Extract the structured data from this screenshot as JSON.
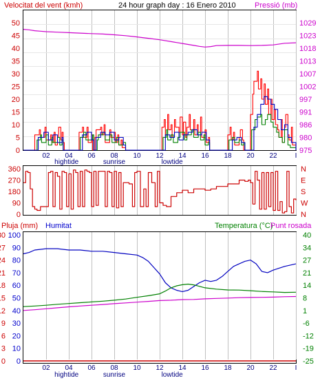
{
  "header": {
    "wind_label": "Velocitat del vent (kmh)",
    "title": "24 hour graph day : 16 Enero 2010",
    "pressure_label": "Pressió (mb)"
  },
  "bottom_header": {
    "rain_label": "Pluja (mm)",
    "humidity_label": "Humitat",
    "temp_label": "Temperatura (°C)",
    "dew_label": "Punt rosada"
  },
  "colors": {
    "wind_gust": "#ff0000",
    "wind_avg": "#008000",
    "wind_avg2": "#0000c0",
    "wind_max": "#cc0000",
    "pressure": "#cc00cc",
    "direction": "#cc0000",
    "humidity": "#0000c0",
    "temperature": "#008000",
    "dew": "#cc00cc",
    "rain": "#cc0000",
    "axis_blue": "#0000cc",
    "axis_red": "#cc0000",
    "axis_magenta": "#cc00cc",
    "axis_green": "#008000"
  },
  "x_ticks": [
    "02",
    "04",
    "06",
    "08",
    "10",
    "12",
    "14",
    "16",
    "18",
    "20",
    "22",
    "I"
  ],
  "x_annotations": [
    {
      "text": "hightide",
      "hour": 3.8
    },
    {
      "text": "sunrise",
      "hour": 8.0
    },
    {
      "text": "lowtide",
      "hour": 13.1
    }
  ],
  "chart_data": [
    {
      "type": "line",
      "title": "24 hour graph day : 16 Enero 2010",
      "ylabel": "Velocitat del vent (kmh)",
      "y2label": "Pressió (mb)",
      "ylim": [
        0,
        50
      ],
      "y_ticks": [
        "0",
        "5",
        "10",
        "15",
        "20",
        "25",
        "30",
        "35",
        "40",
        "45",
        "50"
      ],
      "y2_ticks": [
        "975",
        "980",
        "986",
        "991",
        "997",
        "1002",
        "1007",
        "1013",
        "1018",
        "1023",
        "1029"
      ],
      "y2lim": [
        975,
        1029
      ],
      "xlim": [
        0,
        24
      ],
      "series": [
        {
          "name": "gust",
          "color": "#ff0000",
          "x": [
            0,
            1.0,
            1.0,
            1.4,
            1.5,
            1.9,
            2.0,
            2.4,
            2.5,
            2.7,
            2.8,
            3.0,
            3.1,
            3.3,
            3.4,
            3.5,
            3.6,
            4.8,
            4.9,
            5.2,
            5.3,
            5.6,
            5.7,
            6.0,
            6.1,
            6.3,
            6.4,
            6.8,
            6.9,
            7.1,
            7.2,
            7.6,
            7.7,
            8.0,
            8.1,
            8.3,
            8.4,
            8.6,
            8.7,
            9.0,
            9.1,
            12.1,
            12.2,
            12.4,
            12.5,
            12.7,
            12.8,
            13.0,
            13.1,
            13.3,
            13.4,
            13.7,
            13.8,
            14.0,
            14.1,
            14.3,
            14.4,
            14.6,
            14.7,
            15.0,
            15.1,
            15.3,
            15.4,
            15.6,
            15.7,
            16.0,
            16.1,
            16.3,
            16.4,
            17.9,
            18.0,
            18.2,
            18.3,
            18.5,
            18.6,
            19.0,
            19.1,
            19.3,
            19.4,
            19.9,
            20.0,
            20.2,
            20.3,
            20.6,
            20.7,
            20.9,
            21.0,
            21.2,
            21.3,
            21.5,
            21.6,
            21.8,
            21.9,
            22.1,
            22.2,
            22.4,
            22.5,
            22.7,
            22.8,
            23.0,
            23.1,
            23.3,
            23.4,
            23.6,
            23.7,
            24
          ],
          "values": [
            0,
            0,
            6,
            8,
            5,
            9,
            4,
            6,
            3,
            7,
            2,
            5,
            9,
            4,
            7,
            3,
            0,
            0,
            7,
            9,
            5,
            9,
            3,
            6,
            0,
            5,
            8,
            9,
            6,
            10,
            3,
            8,
            5,
            7,
            3,
            6,
            2,
            4,
            1,
            0,
            0,
            0,
            9,
            12,
            6,
            14,
            8,
            10,
            5,
            12,
            9,
            7,
            13,
            6,
            11,
            5,
            9,
            14,
            8,
            12,
            6,
            10,
            7,
            13,
            5,
            8,
            3,
            5,
            0,
            0,
            6,
            9,
            4,
            7,
            2,
            5,
            8,
            4,
            0,
            0,
            14,
            22,
            27,
            31,
            24,
            28,
            20,
            26,
            18,
            24,
            14,
            20,
            12,
            16,
            10,
            8,
            5,
            12,
            3,
            9,
            14,
            6,
            4,
            9,
            2,
            2
          ]
        },
        {
          "name": "avg",
          "color": "#008000",
          "x": [
            0,
            1.1,
            1.2,
            1.5,
            1.6,
            2.0,
            2.2,
            2.5,
            2.6,
            3.0,
            3.2,
            3.4,
            3.5,
            4.9,
            5.0,
            5.3,
            5.5,
            6.1,
            6.2,
            6.5,
            6.6,
            7.0,
            7.2,
            7.6,
            7.8,
            8.2,
            8.4,
            8.8,
            9.0,
            12.2,
            12.3,
            12.6,
            12.7,
            13.0,
            13.2,
            13.6,
            13.8,
            14.2,
            14.4,
            14.8,
            15.0,
            15.4,
            15.6,
            15.9,
            16.0,
            16.3,
            16.4,
            18.0,
            18.1,
            18.4,
            18.6,
            19.0,
            19.2,
            19.4,
            19.5,
            20.0,
            20.1,
            20.4,
            20.6,
            20.9,
            21.0,
            21.3,
            21.5,
            21.8,
            22.0,
            22.3,
            22.5,
            22.8,
            23.0,
            23.3,
            23.5,
            24
          ],
          "values": [
            0,
            0,
            4,
            6,
            3,
            6,
            2,
            5,
            3,
            5,
            2,
            4,
            0,
            0,
            5,
            7,
            4,
            6,
            0,
            4,
            6,
            7,
            4,
            6,
            3,
            5,
            2,
            3,
            0,
            0,
            5,
            8,
            4,
            6,
            3,
            5,
            7,
            4,
            6,
            8,
            5,
            7,
            4,
            6,
            2,
            3,
            0,
            0,
            4,
            5,
            3,
            4,
            2,
            3,
            0,
            0,
            8,
            12,
            13,
            14,
            10,
            12,
            14,
            11,
            9,
            7,
            5,
            3,
            8,
            2,
            1,
            0
          ]
        },
        {
          "name": "avg2",
          "color": "#0000c0",
          "x": [
            0,
            1.1,
            1.3,
            1.8,
            2.2,
            2.6,
            3.0,
            3.4,
            3.5,
            4.9,
            5.2,
            5.6,
            6.0,
            6.2,
            6.4,
            6.8,
            7.2,
            7.6,
            8.0,
            8.4,
            8.8,
            9.0,
            12.2,
            12.5,
            12.9,
            13.3,
            13.7,
            14.1,
            14.5,
            14.9,
            15.3,
            15.7,
            16.1,
            16.4,
            18.0,
            18.4,
            18.8,
            19.2,
            19.5,
            20.0,
            20.3,
            20.6,
            20.9,
            21.2,
            21.5,
            21.8,
            22.1,
            22.4,
            22.7,
            23.0,
            23.3,
            23.6,
            24
          ],
          "values": [
            0,
            0,
            5,
            7,
            4,
            6,
            3,
            5,
            0,
            0,
            6,
            7,
            4,
            0,
            5,
            7,
            6,
            7,
            4,
            5,
            2,
            0,
            0,
            6,
            5,
            7,
            4,
            6,
            7,
            8,
            6,
            7,
            4,
            0,
            0,
            4,
            5,
            3,
            0,
            0,
            9,
            14,
            18,
            21,
            20,
            18,
            16,
            12,
            8,
            10,
            5,
            3,
            0
          ]
        },
        {
          "name": "pressure",
          "color": "#cc00cc",
          "axis": "y2",
          "x": [
            0,
            0.5,
            1,
            1.5,
            2,
            3,
            4,
            5,
            6,
            7,
            8,
            9,
            10,
            11,
            12,
            13,
            14,
            15,
            15.5,
            16,
            16.5,
            17,
            18,
            19,
            20,
            21,
            22,
            23,
            24
          ],
          "values": [
            1026.2,
            1026.0,
            1025.6,
            1025.4,
            1025.2,
            1025.0,
            1024.8,
            1024.6,
            1024.4,
            1024.2,
            1023.9,
            1023.5,
            1023.0,
            1022.4,
            1021.8,
            1021.0,
            1020.2,
            1019.4,
            1019.0,
            1018.7,
            1018.9,
            1019.3,
            1019.4,
            1019.4,
            1019.3,
            1019.4,
            1019.6,
            1020.3,
            1020.5
          ]
        }
      ]
    },
    {
      "type": "line",
      "ylabel": "",
      "ylim": [
        0,
        360
      ],
      "y_ticks": [
        "0",
        "90",
        "180",
        "270",
        "360"
      ],
      "y2_ticks": [
        "N",
        "W",
        "S",
        "E",
        "N"
      ],
      "xlim": [
        0,
        24
      ],
      "series": [
        {
          "name": "direction",
          "color": "#cc0000",
          "x": [
            0,
            0.2,
            0.4,
            0.6,
            0.8,
            1.0,
            1.2,
            1.5,
            2.0,
            2.2,
            2.4,
            2.6,
            2.8,
            3.0,
            3.2,
            3.4,
            3.6,
            3.8,
            4.0,
            4.2,
            4.4,
            4.6,
            4.8,
            5.0,
            5.2,
            5.4,
            5.6,
            5.8,
            6.0,
            6.2,
            6.4,
            6.6,
            6.8,
            7.0,
            7.2,
            7.4,
            7.6,
            7.8,
            8.0,
            8.2,
            8.4,
            8.6,
            8.8,
            9.0,
            9.3,
            9.6,
            9.8,
            10.0,
            10.3,
            10.6,
            10.8,
            11.0,
            11.3,
            11.6,
            11.8,
            12.0,
            12.3,
            12.6,
            13.0,
            13.5,
            14.0,
            14.5,
            15.0,
            15.5,
            16.0,
            16.5,
            17.0,
            17.5,
            18.0,
            18.5,
            19.0,
            19.5,
            19.8,
            20.0,
            20.2,
            20.4,
            20.6,
            20.8,
            21.0,
            21.2,
            21.4,
            21.6,
            21.8,
            22.0,
            22.2,
            22.4,
            22.6,
            22.8,
            23.0,
            23.2,
            23.4,
            23.6,
            23.8,
            24
          ],
          "values": [
            250,
            340,
            330,
            200,
            60,
            40,
            30,
            60,
            60,
            330,
            340,
            60,
            330,
            300,
            40,
            340,
            330,
            60,
            320,
            40,
            350,
            330,
            60,
            340,
            60,
            350,
            340,
            330,
            60,
            340,
            70,
            340,
            340,
            340,
            60,
            340,
            330,
            60,
            340,
            50,
            330,
            60,
            250,
            250,
            240,
            60,
            330,
            340,
            60,
            200,
            60,
            330,
            250,
            60,
            340,
            90,
            70,
            60,
            140,
            170,
            190,
            170,
            200,
            200,
            190,
            200,
            220,
            220,
            240,
            240,
            270,
            260,
            270,
            250,
            80,
            340,
            270,
            40,
            330,
            40,
            330,
            60,
            330,
            30,
            340,
            30,
            100,
            10,
            20,
            340,
            60,
            10,
            120,
            110
          ]
        }
      ]
    },
    {
      "type": "line",
      "ylabel": "Pluja (mm)",
      "y_ticks_rain": [
        "0",
        "3",
        "6",
        "9",
        "12",
        "15",
        "18",
        "21",
        "24",
        "27",
        "30"
      ],
      "y_ticks_humidity": [
        "0",
        "10",
        "20",
        "30",
        "40",
        "50",
        "60",
        "70",
        "80",
        "90",
        "100"
      ],
      "y2_ticks": [
        "-25",
        "-19",
        "-12",
        "-6",
        "1",
        "8",
        "14",
        "21",
        "27",
        "34",
        "40"
      ],
      "ylim": [
        0,
        100
      ],
      "y2lim": [
        -25,
        40
      ],
      "xlim": [
        0,
        24
      ],
      "series": [
        {
          "name": "Humitat",
          "color": "#0000c0",
          "x": [
            0,
            0.5,
            1,
            2,
            3,
            4,
            5,
            6,
            7,
            8,
            9,
            10,
            10.5,
            11,
            11.5,
            12,
            12.5,
            13,
            13.5,
            14,
            14.5,
            15,
            15.5,
            16,
            16.5,
            17,
            17.5,
            18,
            18.5,
            19,
            19.5,
            20,
            20.5,
            21,
            21.5,
            22,
            23,
            24
          ],
          "values": [
            85,
            86,
            88,
            89,
            89,
            88,
            88,
            87,
            87,
            86,
            85,
            84,
            82,
            79,
            74,
            69,
            62,
            58,
            56,
            55,
            56,
            59,
            62,
            64,
            63,
            64,
            67,
            71,
            75,
            77,
            79,
            80,
            77,
            71,
            70,
            72,
            75,
            77
          ]
        },
        {
          "name": "Temperatura",
          "color": "#008000",
          "axis": "y2",
          "x": [
            0,
            1,
            2,
            3,
            4,
            5,
            6,
            7,
            8,
            9,
            10,
            11,
            12,
            12.5,
            13,
            13.5,
            14,
            14.5,
            15,
            16,
            17,
            18,
            19,
            20,
            21,
            22,
            23,
            24
          ],
          "values": [
            3.0,
            3.3,
            3.7,
            4.2,
            4.6,
            5.0,
            5.4,
            5.8,
            6.3,
            6.9,
            7.8,
            8.6,
            9.6,
            11.0,
            12.7,
            13.7,
            14.3,
            14.6,
            14.2,
            12.7,
            12.0,
            11.6,
            11.5,
            11.2,
            10.8,
            10.6,
            10.3,
            10.4
          ]
        },
        {
          "name": "Punt rosada",
          "color": "#cc00cc",
          "axis": "y2",
          "x": [
            0,
            1,
            2,
            3,
            4,
            5,
            6,
            7,
            8,
            9,
            10,
            11,
            12,
            13,
            14,
            15,
            16,
            17,
            18,
            19,
            20,
            21,
            22,
            23,
            24
          ],
          "values": [
            1.0,
            1.4,
            1.9,
            2.4,
            2.9,
            3.3,
            3.7,
            4.1,
            4.5,
            4.9,
            5.3,
            5.7,
            6.1,
            6.3,
            6.6,
            6.7,
            7.0,
            7.2,
            7.4,
            7.6,
            7.7,
            7.8,
            7.9,
            8.1,
            8.2
          ]
        },
        {
          "name": "Pluja",
          "color": "#cc0000",
          "x": [
            0,
            24
          ],
          "values": [
            0,
            0
          ]
        }
      ]
    }
  ]
}
